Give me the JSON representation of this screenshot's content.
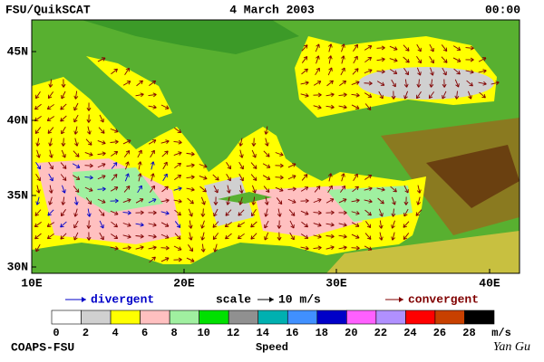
{
  "header": {
    "left": "FSU/QuikSCAT",
    "center": "4 March 2003",
    "right": "00:00"
  },
  "map": {
    "lat_labels": [
      "45N",
      "40N",
      "35N",
      "30N"
    ],
    "lon_labels": [
      "10E",
      "20E",
      "30E",
      "40E"
    ]
  },
  "legend": {
    "divergent": "divergent",
    "scale": "scale",
    "scale_value": "10 m/s",
    "convergent": "convergent"
  },
  "colorbar": {
    "colors": [
      "#ffffff",
      "#d0d0d0",
      "#ffff00",
      "#ffc0c0",
      "#a0f0a0",
      "#00e000",
      "#909090",
      "#00b0b0",
      "#4090ff",
      "#0000c8",
      "#ff60ff",
      "#b090ff",
      "#ff0000",
      "#c84000",
      "#000000"
    ],
    "labels": [
      "0",
      "2",
      "4",
      "6",
      "8",
      "10",
      "12",
      "14",
      "16",
      "18",
      "20",
      "22",
      "24",
      "26",
      "28"
    ],
    "unit": "m/s",
    "title": "Speed"
  },
  "footer": {
    "left": "COAPS-FSU",
    "right": "Yan Gu"
  }
}
